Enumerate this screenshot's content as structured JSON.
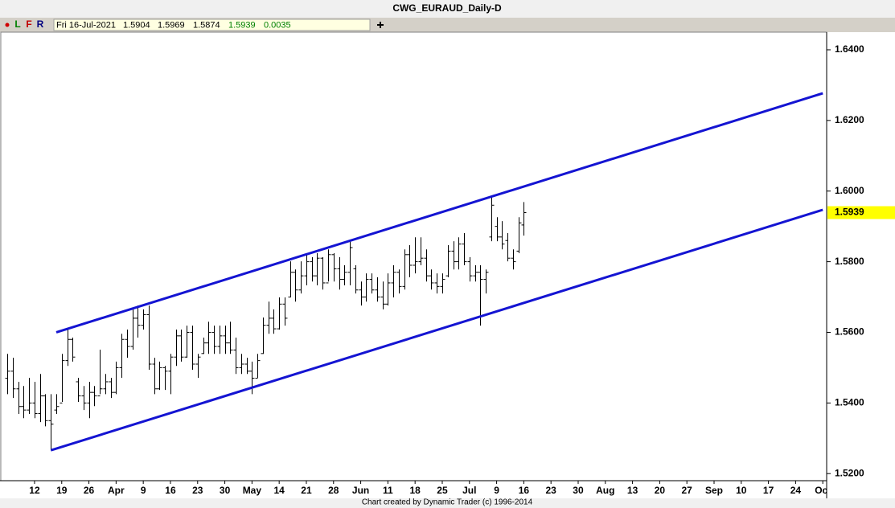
{
  "header": {
    "buttons": [
      "L",
      "F",
      "R"
    ],
    "date": "Fri 16-Jul-2021",
    "change": 0.0035
  },
  "footer": "Chart created by Dynamic Trader  (c) 1996-2014",
  "chart_data": {
    "type": "ohlc",
    "title": "CWG_EURAUD_Daily-D",
    "color": "#000000",
    "x": [
      "2021-03-05",
      "2021-03-08",
      "2021-03-09",
      "2021-03-10",
      "2021-03-11",
      "2021-03-12",
      "2021-03-15",
      "2021-03-16",
      "2021-03-17",
      "2021-03-18",
      "2021-03-19",
      "2021-03-22",
      "2021-03-23",
      "2021-03-24",
      "2021-03-25",
      "2021-03-26",
      "2021-03-29",
      "2021-03-30",
      "2021-03-31",
      "2021-04-01",
      "2021-04-02",
      "2021-04-05",
      "2021-04-06",
      "2021-04-07",
      "2021-04-08",
      "2021-04-09",
      "2021-04-12",
      "2021-04-13",
      "2021-04-14",
      "2021-04-15",
      "2021-04-16",
      "2021-04-19",
      "2021-04-20",
      "2021-04-21",
      "2021-04-22",
      "2021-04-23",
      "2021-04-26",
      "2021-04-27",
      "2021-04-28",
      "2021-04-29",
      "2021-04-30",
      "2021-05-03",
      "2021-05-04",
      "2021-05-05",
      "2021-05-06",
      "2021-05-07",
      "2021-05-10",
      "2021-05-11",
      "2021-05-12",
      "2021-05-13",
      "2021-05-14",
      "2021-05-17",
      "2021-05-18",
      "2021-05-19",
      "2021-05-20",
      "2021-05-21",
      "2021-05-24",
      "2021-05-25",
      "2021-05-26",
      "2021-05-27",
      "2021-05-28",
      "2021-05-31",
      "2021-06-01",
      "2021-06-02",
      "2021-06-03",
      "2021-06-04",
      "2021-06-07",
      "2021-06-08",
      "2021-06-09",
      "2021-06-10",
      "2021-06-11",
      "2021-06-14",
      "2021-06-15",
      "2021-06-16",
      "2021-06-17",
      "2021-06-18",
      "2021-06-21",
      "2021-06-22",
      "2021-06-23",
      "2021-06-24",
      "2021-06-25",
      "2021-06-28",
      "2021-06-29",
      "2021-06-30",
      "2021-07-01",
      "2021-07-02",
      "2021-07-05",
      "2021-07-06",
      "2021-07-07",
      "2021-07-08",
      "2021-07-09",
      "2021-07-12",
      "2021-07-13",
      "2021-07-14",
      "2021-07-15",
      "2021-07-16"
    ],
    "open": [
      1.547,
      1.549,
      1.544,
      1.539,
      1.538,
      1.54,
      1.537,
      1.542,
      1.535,
      1.538,
      1.54,
      1.552,
      1.558,
      1.546,
      1.542,
      1.54,
      1.543,
      1.542,
      1.544,
      1.546,
      1.543,
      1.55,
      1.558,
      1.556,
      1.564,
      1.562,
      1.565,
      1.551,
      1.544,
      1.55,
      1.549,
      1.553,
      1.559,
      1.553,
      1.56,
      1.551,
      1.554,
      1.557,
      1.56,
      1.556,
      1.559,
      1.557,
      1.555,
      1.55,
      1.551,
      1.549,
      1.547,
      1.554,
      1.562,
      1.564,
      1.561,
      1.568,
      1.57,
      1.577,
      1.572,
      1.576,
      1.58,
      1.576,
      1.581,
      1.574,
      1.582,
      1.578,
      1.575,
      1.577,
      1.578,
      1.572,
      1.57,
      1.575,
      1.572,
      1.57,
      1.568,
      1.574,
      1.577,
      1.573,
      1.582,
      1.579,
      1.58,
      1.581,
      1.576,
      1.574,
      1.573,
      1.576,
      1.583,
      1.58,
      1.585,
      1.58,
      1.576,
      1.577,
      1.575,
      1.587,
      1.59,
      1.587,
      1.586,
      1.581,
      1.583,
      1.5904
    ],
    "high": [
      1.5539,
      1.5528,
      1.546,
      1.5448,
      1.5471,
      1.546,
      1.5482,
      1.5425,
      1.5425,
      1.5425,
      1.5539,
      1.5608,
      1.5585,
      1.5471,
      1.5448,
      1.546,
      1.5448,
      1.5551,
      1.5482,
      1.5471,
      1.5517,
      1.5596,
      1.5608,
      1.5665,
      1.5676,
      1.5665,
      1.5676,
      1.5528,
      1.5517,
      1.5505,
      1.5539,
      1.5608,
      1.5608,
      1.5619,
      1.5619,
      1.5539,
      1.5585,
      1.563,
      1.5619,
      1.5619,
      1.5619,
      1.563,
      1.5585,
      1.5539,
      1.5528,
      1.5517,
      1.5539,
      1.5642,
      1.5687,
      1.5665,
      1.5699,
      1.5699,
      1.5801,
      1.5778,
      1.5801,
      1.5824,
      1.5813,
      1.5824,
      1.5813,
      1.5835,
      1.5824,
      1.5813,
      1.579,
      1.5858,
      1.579,
      1.5744,
      1.5767,
      1.5767,
      1.5756,
      1.5744,
      1.5767,
      1.579,
      1.5778,
      1.5835,
      1.5847,
      1.5869,
      1.5869,
      1.5835,
      1.5778,
      1.5767,
      1.5767,
      1.5847,
      1.5858,
      1.5869,
      1.5881,
      1.5813,
      1.579,
      1.579,
      1.5778,
      1.5983,
      1.5926,
      1.5915,
      1.5881,
      1.5835,
      1.5926,
      1.5969
    ],
    "low": [
      1.5425,
      1.5414,
      1.5369,
      1.5357,
      1.5369,
      1.5357,
      1.5346,
      1.5334,
      1.5266,
      1.5369,
      1.5403,
      1.5505,
      1.5517,
      1.5403,
      1.538,
      1.5357,
      1.5391,
      1.5425,
      1.5425,
      1.5414,
      1.5425,
      1.5471,
      1.5528,
      1.5551,
      1.5585,
      1.5608,
      1.5494,
      1.5425,
      1.5437,
      1.5437,
      1.5425,
      1.5505,
      1.5517,
      1.5528,
      1.5494,
      1.5471,
      1.5539,
      1.5539,
      1.5539,
      1.5539,
      1.5539,
      1.5539,
      1.5482,
      1.5482,
      1.5482,
      1.5425,
      1.5471,
      1.5539,
      1.5596,
      1.5596,
      1.5608,
      1.5619,
      1.5699,
      1.5687,
      1.571,
      1.5733,
      1.5744,
      1.5733,
      1.5721,
      1.5744,
      1.5744,
      1.5721,
      1.5733,
      1.5733,
      1.571,
      1.5676,
      1.5687,
      1.571,
      1.5687,
      1.5665,
      1.5676,
      1.5699,
      1.571,
      1.5721,
      1.5756,
      1.5767,
      1.579,
      1.5744,
      1.5721,
      1.571,
      1.571,
      1.5756,
      1.5778,
      1.5778,
      1.579,
      1.5744,
      1.5744,
      1.5619,
      1.571,
      1.5858,
      1.5858,
      1.5835,
      1.5801,
      1.5778,
      1.5824,
      1.5874
    ],
    "close": [
      1.549,
      1.544,
      1.539,
      1.538,
      1.54,
      1.537,
      1.542,
      1.535,
      1.534,
      1.539,
      1.552,
      1.558,
      1.553,
      1.542,
      1.54,
      1.543,
      1.542,
      1.544,
      1.546,
      1.543,
      1.55,
      1.558,
      1.556,
      1.564,
      1.562,
      1.565,
      1.551,
      1.544,
      1.55,
      1.549,
      1.553,
      1.559,
      1.553,
      1.56,
      1.551,
      1.553,
      1.557,
      1.56,
      1.556,
      1.559,
      1.557,
      1.555,
      1.55,
      1.551,
      1.549,
      1.547,
      1.552,
      1.562,
      1.564,
      1.561,
      1.568,
      1.564,
      1.577,
      1.572,
      1.576,
      1.58,
      1.576,
      1.581,
      1.574,
      1.582,
      1.578,
      1.575,
      1.577,
      1.584,
      1.572,
      1.57,
      1.575,
      1.572,
      1.57,
      1.568,
      1.574,
      1.577,
      1.573,
      1.582,
      1.579,
      1.58,
      1.581,
      1.576,
      1.574,
      1.573,
      1.575,
      1.583,
      1.58,
      1.585,
      1.58,
      1.576,
      1.577,
      1.575,
      1.577,
      1.596,
      1.587,
      1.585,
      1.581,
      1.58,
      1.591,
      1.5939
    ],
    "xlim": [
      "2021-03-04",
      "2021-10-01"
    ],
    "xticks": [
      {
        "value": "2021-03-12",
        "label": "12"
      },
      {
        "value": "2021-03-19",
        "label": "19"
      },
      {
        "value": "2021-03-26",
        "label": "26"
      },
      {
        "value": "2021-04-02",
        "label": "Apr"
      },
      {
        "value": "2021-04-09",
        "label": "9"
      },
      {
        "value": "2021-04-16",
        "label": "16"
      },
      {
        "value": "2021-04-23",
        "label": "23"
      },
      {
        "value": "2021-04-30",
        "label": "30"
      },
      {
        "value": "2021-05-07",
        "label": "May"
      },
      {
        "value": "2021-05-14",
        "label": "14"
      },
      {
        "value": "2021-05-21",
        "label": "21"
      },
      {
        "value": "2021-05-28",
        "label": "28"
      },
      {
        "value": "2021-06-04",
        "label": "Jun"
      },
      {
        "value": "2021-06-11",
        "label": "11"
      },
      {
        "value": "2021-06-18",
        "label": "18"
      },
      {
        "value": "2021-06-25",
        "label": "25"
      },
      {
        "value": "2021-07-02",
        "label": "Jul"
      },
      {
        "value": "2021-07-09",
        "label": "9"
      },
      {
        "value": "2021-07-16",
        "label": "16"
      },
      {
        "value": "2021-07-23",
        "label": "23"
      },
      {
        "value": "2021-07-30",
        "label": "30"
      },
      {
        "value": "2021-08-06",
        "label": "Aug"
      },
      {
        "value": "2021-08-13",
        "label": "13"
      },
      {
        "value": "2021-08-20",
        "label": "20"
      },
      {
        "value": "2021-08-27",
        "label": "27"
      },
      {
        "value": "2021-09-03",
        "label": "Sep"
      },
      {
        "value": "2021-09-10",
        "label": "10"
      },
      {
        "value": "2021-09-17",
        "label": "17"
      },
      {
        "value": "2021-09-24",
        "label": "24"
      },
      {
        "value": "2021-10-01",
        "label": "Oct"
      }
    ],
    "ylim": [
      1.518,
      1.645
    ],
    "yticks": [
      {
        "value": 1.52,
        "label": "1.5200"
      },
      {
        "value": 1.54,
        "label": "1.5400"
      },
      {
        "value": 1.56,
        "label": "1.5600"
      },
      {
        "value": 1.58,
        "label": "1.5800"
      },
      {
        "value": 1.6,
        "label": "1.6000"
      },
      {
        "value": 1.62,
        "label": "1.6200"
      },
      {
        "value": 1.64,
        "label": "1.6400"
      }
    ],
    "trendlines": [
      {
        "color": "#1414d2",
        "start": {
          "x": "2021-03-18",
          "y": 1.56
        },
        "end": {
          "x": "2021-10-01",
          "y": 1.6277
        }
      },
      {
        "color": "#1414d2",
        "start": {
          "x": "2021-03-17",
          "y": 1.5266
        },
        "end": {
          "x": "2021-10-01",
          "y": 1.5947
        }
      }
    ],
    "last_price_color": "#ffff00"
  }
}
